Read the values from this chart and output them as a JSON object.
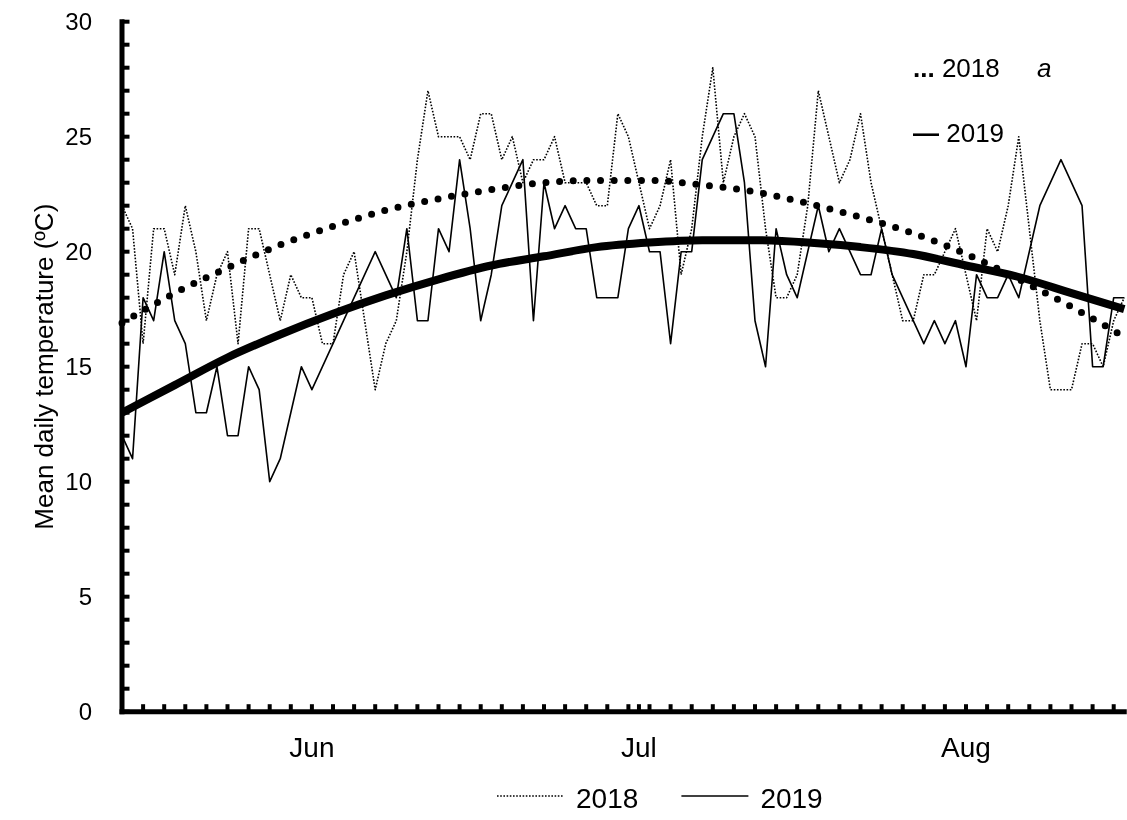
{
  "chart_data": {
    "type": "line",
    "ylabel": "Mean daily temperature (ºC)",
    "annotations": [
      "... 2018",
      "a",
      "— 2019"
    ],
    "legend": "bottom",
    "xlim": [
      "--05-14",
      "--08-17"
    ],
    "xticks": [
      {
        "value": "--05-16",
        "label": null
      },
      {
        "value": "--05-18",
        "label": null
      },
      {
        "value": "--05-20",
        "label": null
      },
      {
        "value": "--05-22",
        "label": null
      },
      {
        "value": "--05-24",
        "label": null
      },
      {
        "value": "--05-26",
        "label": null
      },
      {
        "value": "--05-28",
        "label": null
      },
      {
        "value": "--05-30",
        "label": null
      },
      {
        "value": "--06-01",
        "label": "Jun"
      },
      {
        "value": "--06-03",
        "label": null
      },
      {
        "value": "--06-05",
        "label": null
      },
      {
        "value": "--06-07",
        "label": null
      },
      {
        "value": "--06-09",
        "label": null
      },
      {
        "value": "--06-11",
        "label": null
      },
      {
        "value": "--06-13",
        "label": null
      },
      {
        "value": "--06-15",
        "label": null
      },
      {
        "value": "--06-17",
        "label": null
      },
      {
        "value": "--06-19",
        "label": null
      },
      {
        "value": "--06-21",
        "label": null
      },
      {
        "value": "--06-23",
        "label": null
      },
      {
        "value": "--06-25",
        "label": null
      },
      {
        "value": "--06-27",
        "label": null
      },
      {
        "value": "--06-29",
        "label": null
      },
      {
        "value": "--07-01",
        "label": null
      },
      {
        "value": "--07-02",
        "label": "Jul"
      },
      {
        "value": "--07-03",
        "label": null
      },
      {
        "value": "--07-05",
        "label": null
      },
      {
        "value": "--07-07",
        "label": null
      },
      {
        "value": "--07-09",
        "label": null
      },
      {
        "value": "--07-11",
        "label": null
      },
      {
        "value": "--07-13",
        "label": null
      },
      {
        "value": "--07-15",
        "label": null
      },
      {
        "value": "--07-17",
        "label": null
      },
      {
        "value": "--07-19",
        "label": null
      },
      {
        "value": "--07-21",
        "label": null
      },
      {
        "value": "--07-23",
        "label": null
      },
      {
        "value": "--07-25",
        "label": null
      },
      {
        "value": "--07-27",
        "label": null
      },
      {
        "value": "--07-29",
        "label": null
      },
      {
        "value": "--07-31",
        "label": null
      },
      {
        "value": "--08-02",
        "label": "Aug"
      },
      {
        "value": "--08-04",
        "label": null
      },
      {
        "value": "--08-06",
        "label": null
      },
      {
        "value": "--08-08",
        "label": null
      },
      {
        "value": "--08-10",
        "label": null
      },
      {
        "value": "--08-12",
        "label": null
      },
      {
        "value": "--08-14",
        "label": null
      },
      {
        "value": "--08-16",
        "label": null
      }
    ],
    "ylim": [
      0,
      30
    ],
    "yticks": [
      0,
      {
        "value": 1,
        "label": null
      },
      {
        "value": 2,
        "label": null
      },
      {
        "value": 3,
        "label": null
      },
      {
        "value": 4,
        "label": null
      },
      5,
      {
        "value": 6,
        "label": null
      },
      {
        "value": 7,
        "label": null
      },
      {
        "value": 8,
        "label": null
      },
      {
        "value": 9,
        "label": null
      },
      10,
      {
        "value": 11,
        "label": null
      },
      {
        "value": 12,
        "label": null
      },
      {
        "value": 13,
        "label": null
      },
      {
        "value": 14,
        "label": null
      },
      15,
      {
        "value": 16,
        "label": null
      },
      {
        "value": 17,
        "label": null
      },
      {
        "value": 18,
        "label": null
      },
      {
        "value": 19,
        "label": null
      },
      20,
      {
        "value": 21,
        "label": null
      },
      {
        "value": 22,
        "label": null
      },
      {
        "value": 23,
        "label": null
      },
      {
        "value": 24,
        "label": null
      },
      25,
      {
        "value": 26,
        "label": null
      },
      {
        "value": 27,
        "label": null
      },
      {
        "value": 28,
        "label": null
      },
      {
        "value": 29,
        "label": null
      },
      30
    ],
    "x": [
      "--05-14",
      "--05-15",
      "--05-16",
      "--05-17",
      "--05-18",
      "--05-19",
      "--05-20",
      "--05-21",
      "--05-22",
      "--05-23",
      "--05-24",
      "--05-25",
      "--05-26",
      "--05-27",
      "--05-28",
      "--05-29",
      "--05-30",
      "--05-31",
      "--06-01",
      "--06-02",
      "--06-03",
      "--06-04",
      "--06-05",
      "--06-06",
      "--06-07",
      "--06-08",
      "--06-09",
      "--06-10",
      "--06-11",
      "--06-12",
      "--06-13",
      "--06-14",
      "--06-15",
      "--06-16",
      "--06-17",
      "--06-18",
      "--06-19",
      "--06-20",
      "--06-21",
      "--06-22",
      "--06-23",
      "--06-24",
      "--06-25",
      "--06-26",
      "--06-27",
      "--06-28",
      "--06-29",
      "--06-30",
      "--07-01",
      "--07-02",
      "--07-03",
      "--07-04",
      "--07-05",
      "--07-06",
      "--07-07",
      "--07-08",
      "--07-09",
      "--07-10",
      "--07-11",
      "--07-12",
      "--07-13",
      "--07-14",
      "--07-15",
      "--07-16",
      "--07-17",
      "--07-18",
      "--07-19",
      "--07-20",
      "--07-21",
      "--07-22",
      "--07-23",
      "--07-24",
      "--07-25",
      "--07-26",
      "--07-27",
      "--07-28",
      "--07-29",
      "--07-30",
      "--07-31",
      "--08-01",
      "--08-02",
      "--08-03",
      "--08-04",
      "--08-05",
      "--08-06",
      "--08-07",
      "--08-08",
      "--08-09",
      "--08-10",
      "--08-11",
      "--08-12",
      "--08-13",
      "--08-14",
      "--08-15",
      "--08-16",
      "--08-17"
    ],
    "series": [
      {
        "name": "2018",
        "color": "#000000",
        "line_style": "dotted",
        "values": [
          22,
          21,
          16,
          21,
          21,
          19,
          22,
          20,
          17,
          19,
          20,
          16,
          21,
          21,
          19,
          17,
          19,
          18,
          18,
          16,
          16,
          19,
          20,
          17,
          14,
          16,
          17,
          20,
          24,
          27,
          25,
          25,
          25,
          24,
          26,
          26,
          24,
          25,
          23,
          24,
          24,
          25,
          23,
          23,
          23,
          22,
          22,
          26,
          25,
          23,
          21,
          22,
          24,
          19,
          21,
          25,
          28,
          23,
          25,
          26,
          25,
          21,
          18,
          18,
          19,
          22,
          27,
          25,
          23,
          24,
          26,
          23,
          21,
          19,
          17,
          17,
          19,
          19,
          20,
          21,
          19,
          17,
          21,
          20,
          22,
          25,
          21,
          17,
          14,
          14,
          14,
          16,
          16,
          15,
          17,
          18
        ]
      },
      {
        "name": "2019",
        "color": "#000000",
        "line_style": "solid",
        "values": [
          12,
          11,
          18,
          17,
          20,
          17,
          16,
          13,
          13,
          15,
          12,
          12,
          15,
          14,
          10,
          11,
          13,
          15,
          14,
          15,
          16,
          17,
          18,
          19,
          20,
          19,
          18,
          21,
          17,
          17,
          21,
          20,
          24,
          21,
          17,
          19,
          22,
          23,
          24,
          17,
          23,
          21,
          22,
          21,
          21,
          18,
          18,
          18,
          21,
          22,
          20,
          20,
          16,
          20,
          20,
          24,
          25,
          26,
          26,
          23,
          17,
          15,
          21,
          19,
          18,
          20,
          22,
          20,
          21,
          20,
          19,
          19,
          21,
          19,
          18,
          17,
          16,
          17,
          16,
          17,
          15,
          19,
          18,
          18,
          19,
          18,
          20,
          22,
          23,
          24,
          23,
          22,
          15,
          15,
          18,
          18
        ]
      },
      {
        "type": "line",
        "color": "#000000",
        "line_style": "dotted",
        "x": [
          "--05-14",
          "--05-19",
          "--05-24",
          "--05-29",
          "--06-03",
          "--06-08",
          "--06-13",
          "--06-18",
          "--06-23",
          "--06-28",
          "--07-03",
          "--07-08",
          "--07-13",
          "--07-18",
          "--07-23",
          "--07-28",
          "--08-02",
          "--08-07",
          "--08-12",
          "--08-17"
        ],
        "values": [
          16.9,
          18.2,
          19.3,
          20.3,
          21.1,
          21.8,
          22.3,
          22.7,
          23.0,
          23.1,
          23.1,
          22.9,
          22.6,
          22.1,
          21.5,
          20.8,
          19.9,
          18.8,
          17.6,
          16.3
        ]
      },
      {
        "type": "line",
        "color": "#000000",
        "line_style": "solid",
        "x": [
          "--05-14",
          "--05-19",
          "--05-24",
          "--05-29",
          "--06-03",
          "--06-08",
          "--06-13",
          "--06-18",
          "--06-23",
          "--06-28",
          "--07-03",
          "--07-08",
          "--07-13",
          "--07-18",
          "--07-23",
          "--07-28",
          "--08-02",
          "--08-07",
          "--08-12",
          "--08-17"
        ],
        "values": [
          13.0,
          14.2,
          15.4,
          16.4,
          17.3,
          18.1,
          18.8,
          19.4,
          19.8,
          20.2,
          20.4,
          20.5,
          20.5,
          20.4,
          20.2,
          19.9,
          19.4,
          18.9,
          18.2,
          17.5
        ]
      }
    ]
  }
}
